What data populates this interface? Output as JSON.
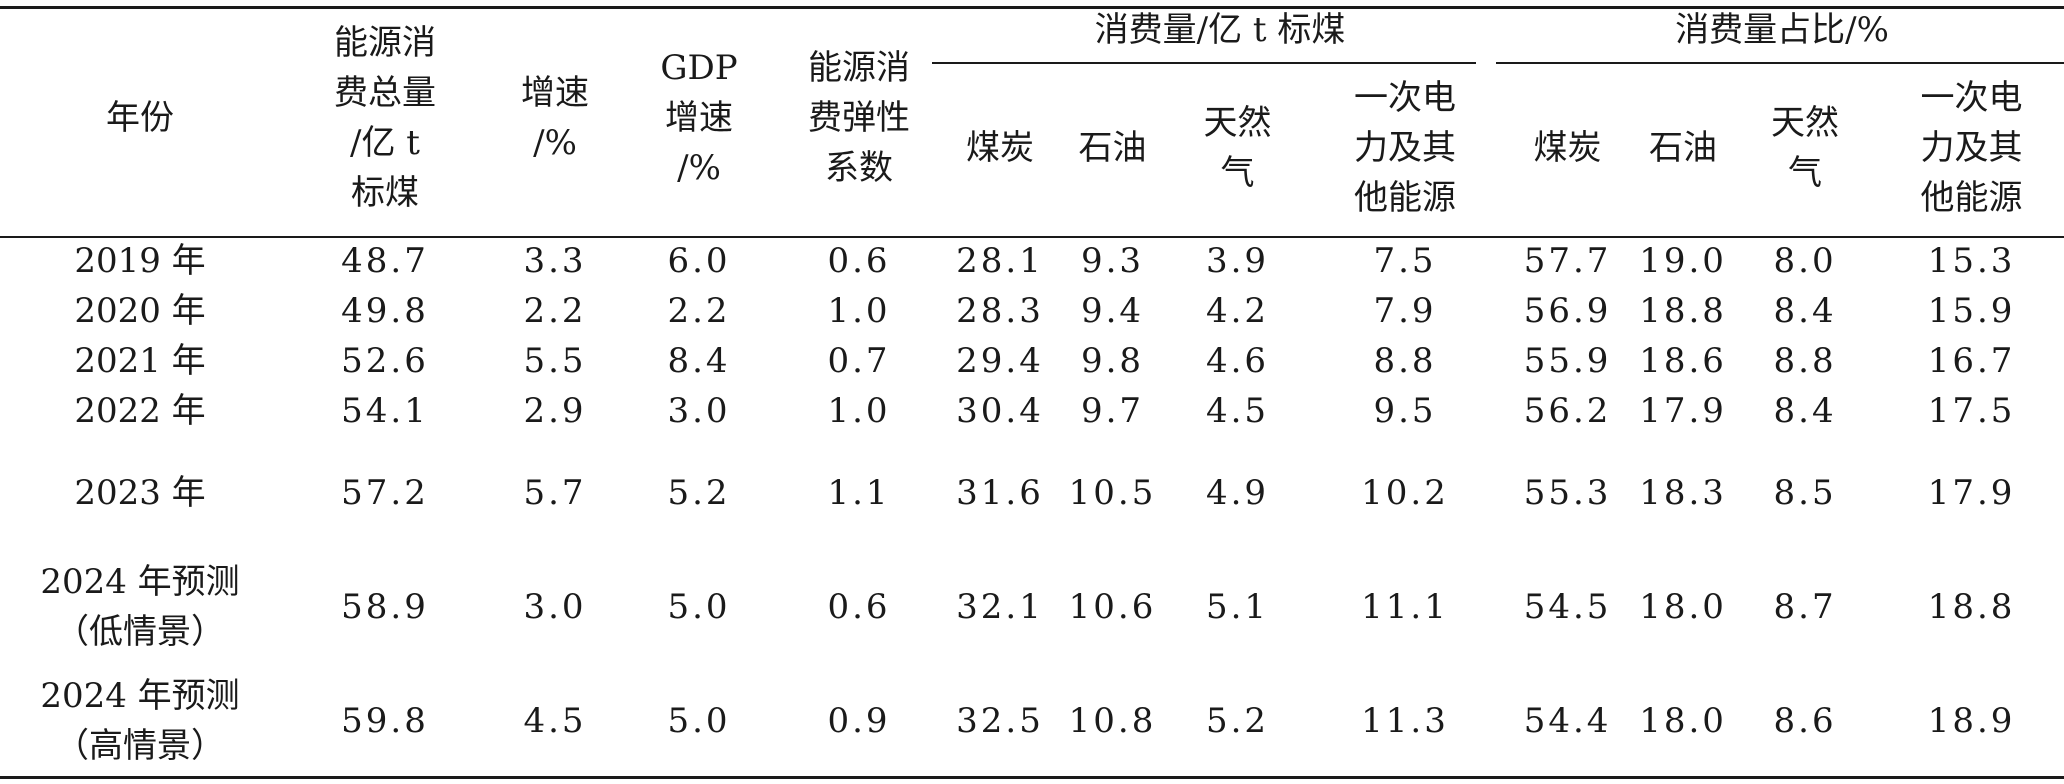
{
  "headers": {
    "year": "年份",
    "total": [
      "能源消",
      "费总量",
      "/亿 t",
      "标煤"
    ],
    "growth": [
      "增速",
      "/%"
    ],
    "gdp": [
      "GDP",
      "增速",
      "/%"
    ],
    "elasticity": [
      "能源消",
      "费弹性",
      "系数"
    ],
    "group_volume": "消费量/亿 t 标煤",
    "group_share": "消费量占比/%",
    "sub": {
      "coal": "煤炭",
      "oil": "石油",
      "gas": [
        "天然",
        "气"
      ],
      "primary": [
        "一次电",
        "力及其",
        "他能源"
      ]
    }
  },
  "rows": [
    {
      "year": [
        "2019 年"
      ],
      "cells": [
        "48.7",
        "3.3",
        "6.0",
        "0.6",
        "28.1",
        "9.3",
        "3.9",
        "7.5",
        "57.7",
        "19.0",
        "8.0",
        "15.3"
      ]
    },
    {
      "year": [
        "2020 年"
      ],
      "cells": [
        "49.8",
        "2.2",
        "2.2",
        "1.0",
        "28.3",
        "9.4",
        "4.2",
        "7.9",
        "56.9",
        "18.8",
        "8.4",
        "15.9"
      ]
    },
    {
      "year": [
        "2021 年"
      ],
      "cells": [
        "52.6",
        "5.5",
        "8.4",
        "0.7",
        "29.4",
        "9.8",
        "4.6",
        "8.8",
        "55.9",
        "18.6",
        "8.8",
        "16.7"
      ]
    },
    {
      "year": [
        "2022 年"
      ],
      "cells": [
        "54.1",
        "2.9",
        "3.0",
        "1.0",
        "30.4",
        "9.7",
        "4.5",
        "9.5",
        "56.2",
        "17.9",
        "8.4",
        "17.5"
      ]
    },
    {
      "year": [
        "2023 年"
      ],
      "cells": [
        "57.2",
        "5.7",
        "5.2",
        "1.1",
        "31.6",
        "10.5",
        "4.9",
        "10.2",
        "55.3",
        "18.3",
        "8.5",
        "17.9"
      ]
    },
    {
      "year": [
        "2024 年预测",
        "（低情景）"
      ],
      "cells": [
        "58.9",
        "3.0",
        "5.0",
        "0.6",
        "32.1",
        "10.6",
        "5.1",
        "11.1",
        "54.5",
        "18.0",
        "8.7",
        "18.8"
      ]
    },
    {
      "year": [
        "2024 年预测",
        "（高情景）"
      ],
      "cells": [
        "59.8",
        "4.5",
        "5.0",
        "0.9",
        "32.5",
        "10.8",
        "5.2",
        "11.3",
        "54.4",
        "18.0",
        "8.6",
        "18.9"
      ]
    }
  ]
}
